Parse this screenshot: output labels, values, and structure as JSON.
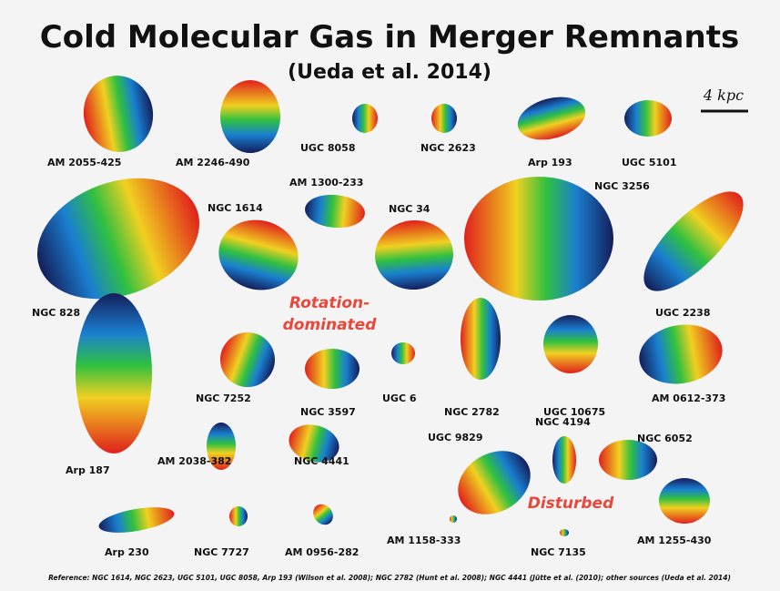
{
  "title": "Cold Molecular Gas in Merger Remnants",
  "subtitle": "(Ueda et al. 2014)",
  "scale_bar": {
    "label": "4 kpc"
  },
  "galaxies": [
    {
      "name": "AM 2055-425"
    },
    {
      "name": "AM 2246-490"
    },
    {
      "name": "UGC 8058"
    },
    {
      "name": "NGC 2623"
    },
    {
      "name": "Arp 193"
    },
    {
      "name": "UGC 5101"
    },
    {
      "name": "AM 1300-233"
    },
    {
      "name": "NGC 1614"
    },
    {
      "name": "NGC 34"
    },
    {
      "name": "NGC 3256"
    },
    {
      "name": "NGC 828"
    },
    {
      "name": "UGC 2238"
    },
    {
      "name": "Arp 187"
    },
    {
      "name": "NGC 7252"
    },
    {
      "name": "NGC 3597"
    },
    {
      "name": "UGC 6"
    },
    {
      "name": "NGC 2782"
    },
    {
      "name": "UGC 10675"
    },
    {
      "name": "AM 0612-373"
    },
    {
      "name": "AM 2038-382"
    },
    {
      "name": "NGC 4441"
    },
    {
      "name": "UGC 9829"
    },
    {
      "name": "NGC 4194"
    },
    {
      "name": "NGC 6052"
    },
    {
      "name": "Arp 230"
    },
    {
      "name": "NGC 7727"
    },
    {
      "name": "AM 0956-282"
    },
    {
      "name": "AM 1158-333"
    },
    {
      "name": "NGC 7135"
    },
    {
      "name": "AM 1255-430"
    }
  ],
  "groups": {
    "rotation": [
      "Rotation-",
      "dominated"
    ],
    "disturbed": "Disturbed"
  },
  "reference": "Reference: NGC 1614, NGC 2623, UGC 5101, UGC 8058, Arp 193 (Wilson et al. 2008); NGC 2782 (Hunt et al. 2008); NGC 4441 (Jütte et al. (2010); other sources (Ueda et al. 2014)"
}
